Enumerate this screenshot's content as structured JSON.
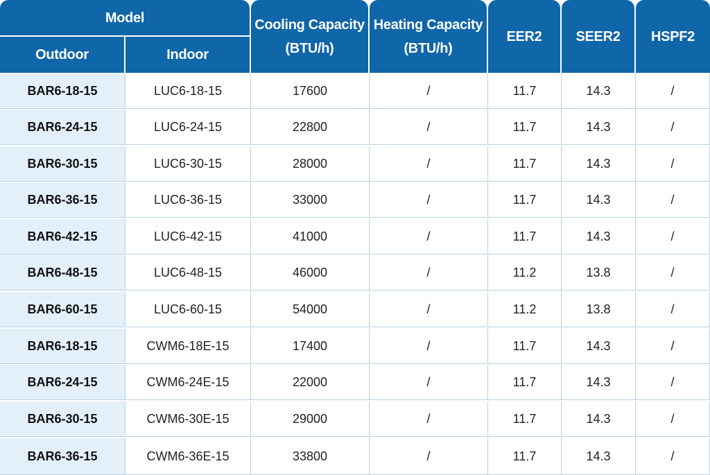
{
  "header": {
    "model": "Model",
    "outdoor": "Outdoor",
    "indoor": "Indoor",
    "cooling_l1": "Cooling Capacity",
    "cooling_l2": "(BTU/h)",
    "heating_l1": "Heating Capacity",
    "heating_l2": "(BTU/h)",
    "eer2": "EER2",
    "seer2": "SEER2",
    "hspf2": "HSPF2"
  },
  "rows": [
    {
      "outdoor": "BAR6-18-15",
      "indoor": "LUC6-18-15",
      "cooling": "17600",
      "heating": "/",
      "eer2": "11.7",
      "seer2": "14.3",
      "hspf2": "/"
    },
    {
      "outdoor": "BAR6-24-15",
      "indoor": "LUC6-24-15",
      "cooling": "22800",
      "heating": "/",
      "eer2": "11.7",
      "seer2": "14.3",
      "hspf2": "/"
    },
    {
      "outdoor": "BAR6-30-15",
      "indoor": "LUC6-30-15",
      "cooling": "28000",
      "heating": "/",
      "eer2": "11.7",
      "seer2": "14.3",
      "hspf2": "/"
    },
    {
      "outdoor": "BAR6-36-15",
      "indoor": "LUC6-36-15",
      "cooling": "33000",
      "heating": "/",
      "eer2": "11.7",
      "seer2": "14.3",
      "hspf2": "/"
    },
    {
      "outdoor": "BAR6-42-15",
      "indoor": "LUC6-42-15",
      "cooling": "41000",
      "heating": "/",
      "eer2": "11.7",
      "seer2": "14.3",
      "hspf2": "/"
    },
    {
      "outdoor": "BAR6-48-15",
      "indoor": "LUC6-48-15",
      "cooling": "46000",
      "heating": "/",
      "eer2": "11.2",
      "seer2": "13.8",
      "hspf2": "/"
    },
    {
      "outdoor": "BAR6-60-15",
      "indoor": "LUC6-60-15",
      "cooling": "54000",
      "heating": "/",
      "eer2": "11.2",
      "seer2": "13.8",
      "hspf2": "/"
    },
    {
      "outdoor": "BAR6-18-15",
      "indoor": "CWM6-18E-15",
      "cooling": "17400",
      "heating": "/",
      "eer2": "11.7",
      "seer2": "14.3",
      "hspf2": "/"
    },
    {
      "outdoor": "BAR6-24-15",
      "indoor": "CWM6-24E-15",
      "cooling": "22000",
      "heating": "/",
      "eer2": "11.7",
      "seer2": "14.3",
      "hspf2": "/"
    },
    {
      "outdoor": "BAR6-30-15",
      "indoor": "CWM6-30E-15",
      "cooling": "29000",
      "heating": "/",
      "eer2": "11.7",
      "seer2": "14.3",
      "hspf2": "/"
    },
    {
      "outdoor": "BAR6-36-15",
      "indoor": "CWM6-36E-15",
      "cooling": "33800",
      "heating": "/",
      "eer2": "11.7",
      "seer2": "14.3",
      "hspf2": "/"
    }
  ],
  "colors": {
    "header_bg": "#0f66a8",
    "outdoor_bg": "#e3f0fa",
    "grid_line": "#b9d0e2"
  }
}
